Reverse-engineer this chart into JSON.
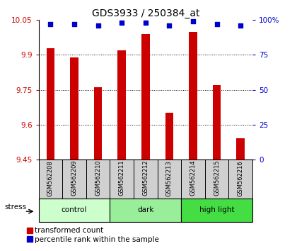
{
  "title": "GDS3933 / 250384_at",
  "samples": [
    "GSM562208",
    "GSM562209",
    "GSM562210",
    "GSM562211",
    "GSM562212",
    "GSM562213",
    "GSM562214",
    "GSM562215",
    "GSM562216"
  ],
  "transformed_counts": [
    9.93,
    9.89,
    9.76,
    9.92,
    9.99,
    9.65,
    10.0,
    9.77,
    9.54
  ],
  "percentile_ranks": [
    97,
    97,
    96,
    98,
    98,
    96,
    99,
    97,
    96
  ],
  "ymin": 9.45,
  "ymax": 10.05,
  "yticks": [
    9.45,
    9.6,
    9.75,
    9.9,
    10.05
  ],
  "ytick_labels": [
    "9.45",
    "9.6",
    "9.75",
    "9.9",
    "10.05"
  ],
  "right_yticks": [
    0,
    25,
    50,
    75,
    100
  ],
  "right_ytick_labels": [
    "0",
    "25",
    "50",
    "75",
    "100%"
  ],
  "bar_color": "#cc0000",
  "dot_color": "#0000cc",
  "groups": [
    {
      "label": "control",
      "start": 0,
      "end": 3,
      "color": "#ccffcc"
    },
    {
      "label": "dark",
      "start": 3,
      "end": 6,
      "color": "#99ee99"
    },
    {
      "label": "high light",
      "start": 6,
      "end": 9,
      "color": "#44dd44"
    }
  ],
  "stress_label": "stress",
  "legend_bar_label": "transformed count",
  "legend_dot_label": "percentile rank within the sample",
  "ylabel_color": "#cc0000",
  "right_ylabel_color": "#0000cc",
  "sample_area_color": "#d0d0d0",
  "bar_width": 0.35
}
